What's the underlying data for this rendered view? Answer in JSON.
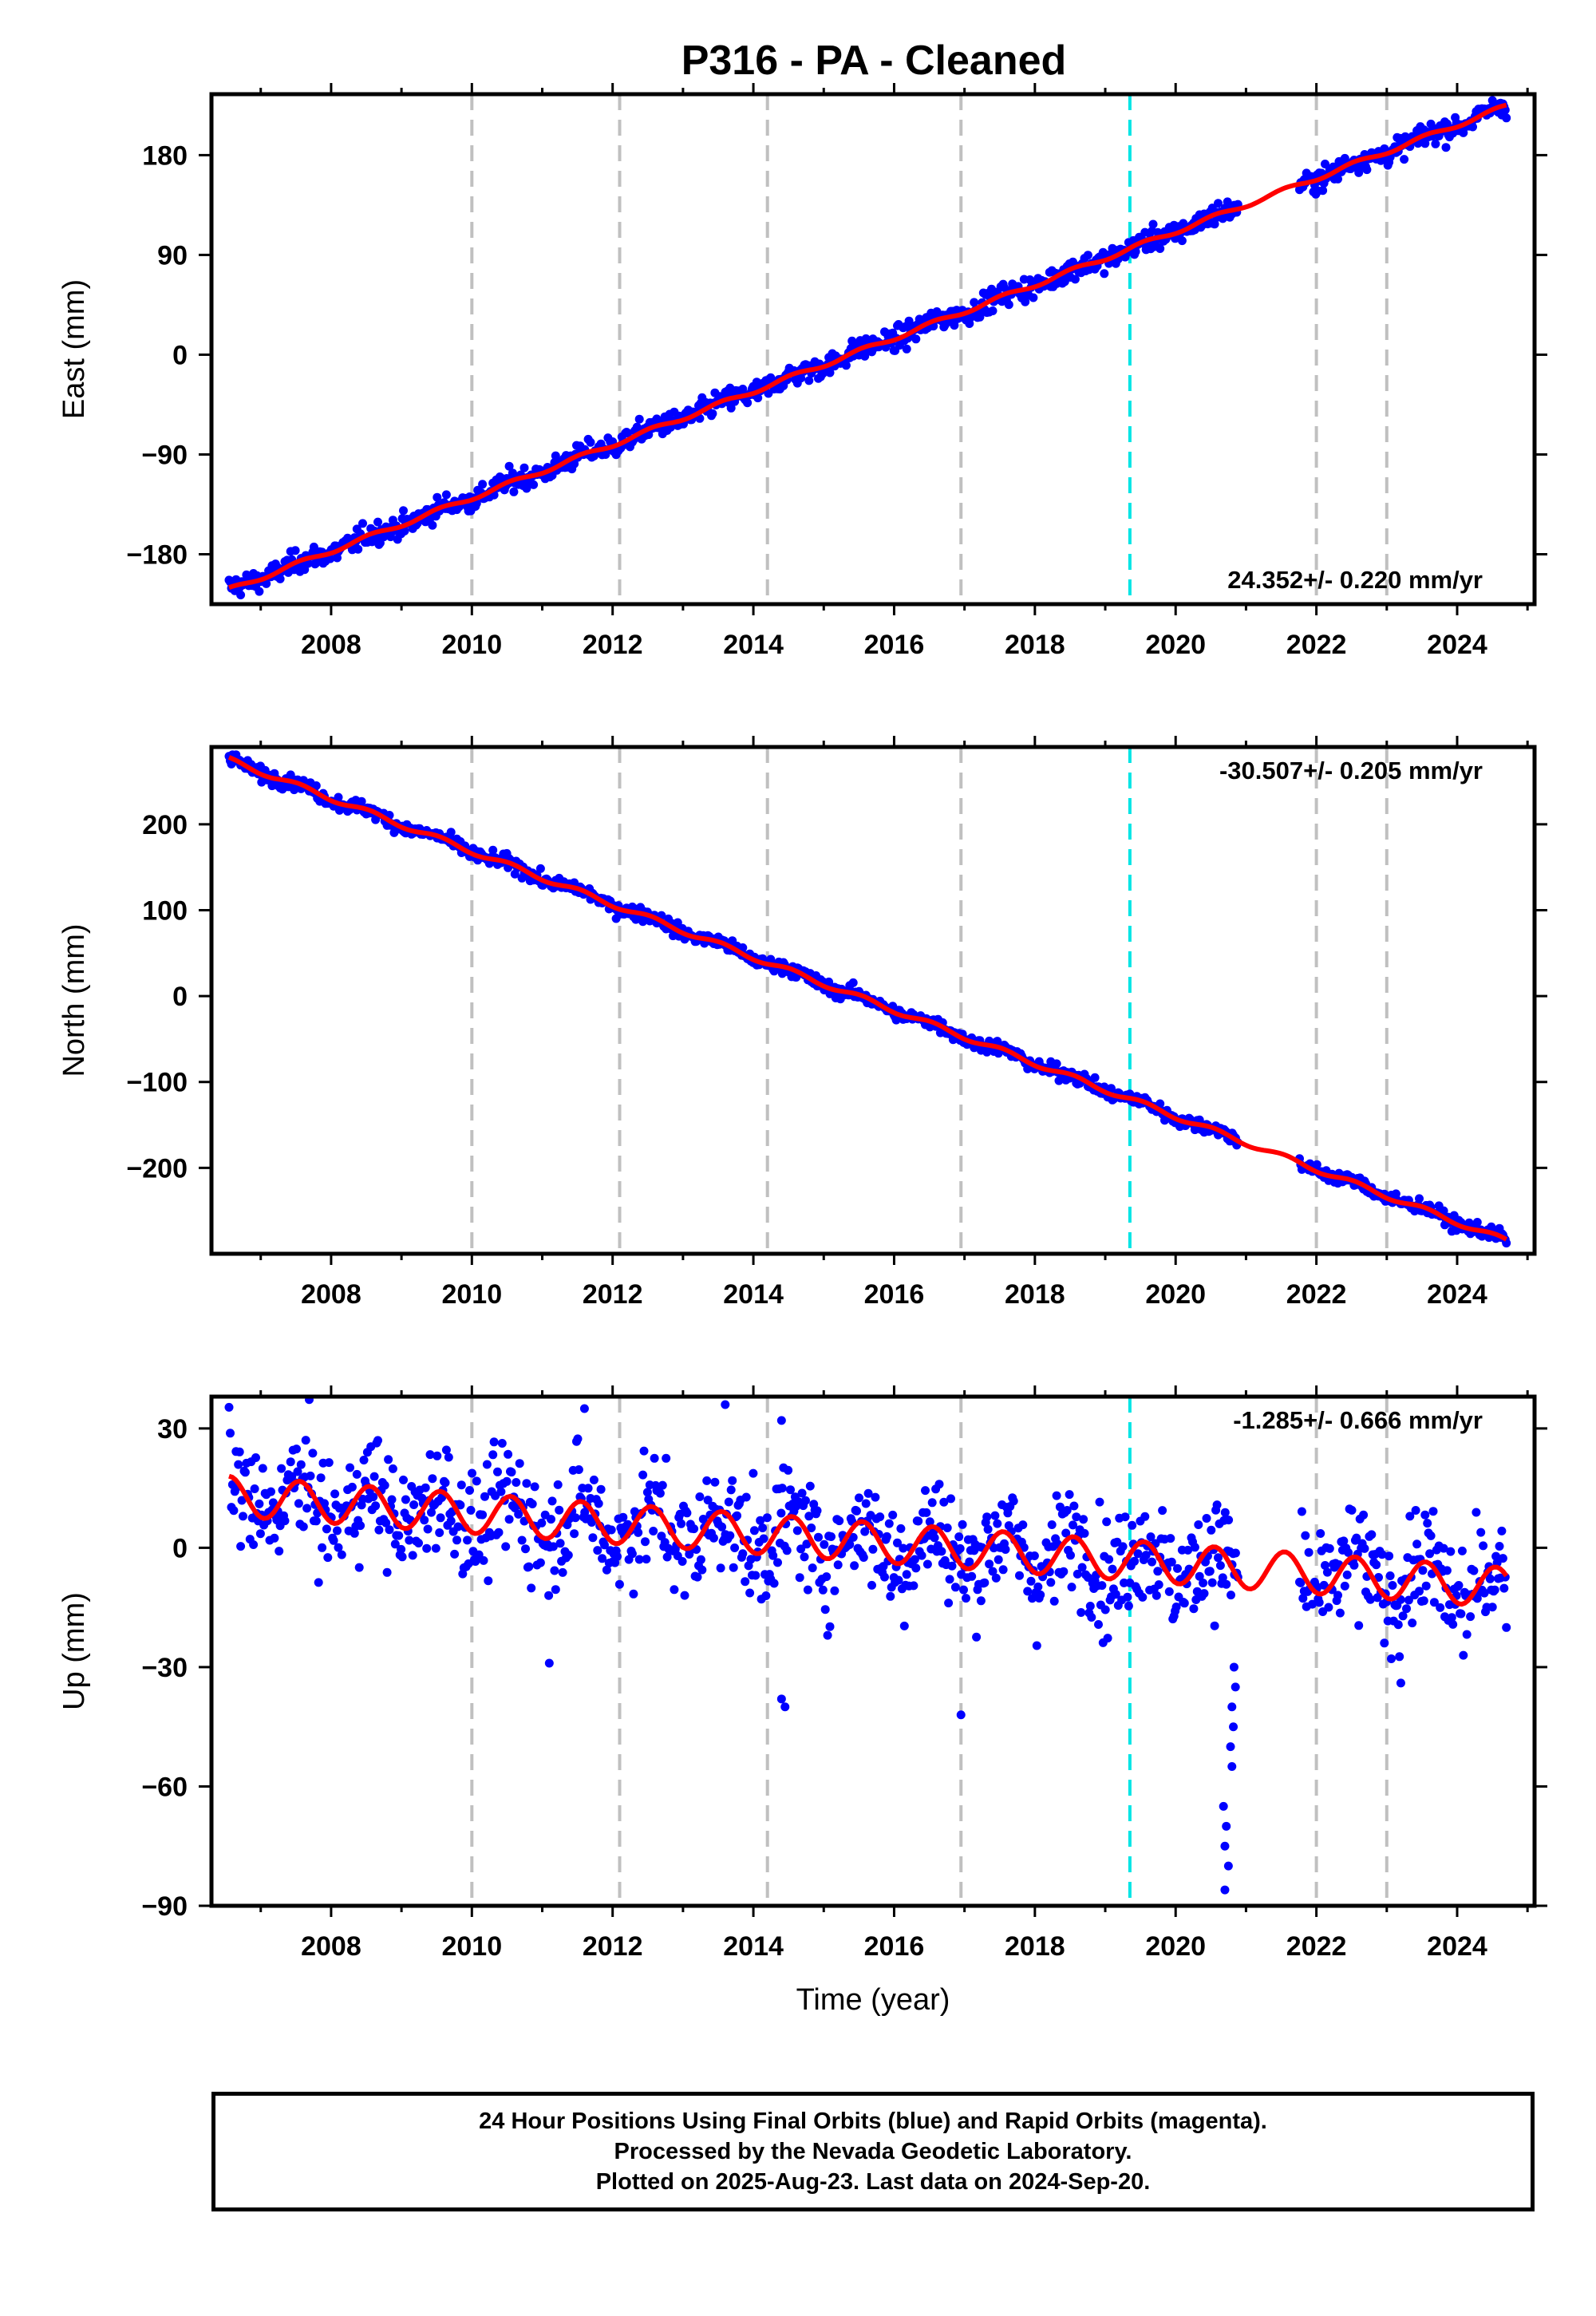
{
  "title": "P316  - PA - Cleaned",
  "footer": {
    "line1": "24 Hour Positions Using Final Orbits (blue) and Rapid Orbits (magenta).",
    "line2": "Processed by the Nevada Geodetic Laboratory.",
    "line3": "Plotted on 2025-Aug-23. Last data on 2024-Sep-20."
  },
  "colors": {
    "data": "#0000ff",
    "model": "#ff0000",
    "grid": "#c0c0c0",
    "equipment_change": "#00e5e5"
  },
  "chart_data": [
    {
      "type": "scatter",
      "ylabel": "East (mm)",
      "xlabel": "",
      "xlim": [
        2006.3,
        2025.1
      ],
      "ylim": [
        -225,
        235
      ],
      "x_ticks": [
        2008,
        2010,
        2012,
        2014,
        2016,
        2018,
        2020,
        2022,
        2024
      ],
      "y_ticks": [
        -180,
        -90,
        0,
        90,
        180
      ],
      "annotation": "24.352+/- 0.220 mm/yr",
      "gray_dashed_lines": [
        2010.0,
        2012.1,
        2014.2,
        2016.95
      ],
      "gray_dashed_lines_late": [
        2022.0,
        2023.0
      ],
      "cyan_dashed_line": 2019.35,
      "start": [
        2006.55,
        -212
      ],
      "end": [
        2024.7,
        224
      ],
      "noise": 5,
      "seasonal": 2
    },
    {
      "type": "scatter",
      "ylabel": "North (mm)",
      "xlabel": "",
      "xlim": [
        2006.3,
        2025.1
      ],
      "ylim": [
        -300,
        290
      ],
      "x_ticks": [
        2008,
        2010,
        2012,
        2014,
        2016,
        2018,
        2020,
        2022,
        2024
      ],
      "y_ticks": [
        -200,
        -100,
        0,
        100,
        200
      ],
      "annotation": "-30.507+/- 0.205 mm/yr",
      "gray_dashed_lines": [
        2010.0,
        2012.1,
        2014.2,
        2016.95
      ],
      "gray_dashed_lines_late": [
        2022.0,
        2023.0
      ],
      "cyan_dashed_line": 2019.35,
      "start": [
        2006.55,
        275
      ],
      "end": [
        2024.7,
        -285
      ],
      "noise": 4,
      "seasonal": 3
    },
    {
      "type": "scatter",
      "ylabel": "Up (mm)",
      "xlabel": "Time (year)",
      "xlim": [
        2006.3,
        2025.1
      ],
      "ylim": [
        -90,
        38
      ],
      "x_ticks": [
        2008,
        2010,
        2012,
        2014,
        2016,
        2018,
        2020,
        2022,
        2024
      ],
      "y_ticks": [
        -90,
        -60,
        -30,
        0,
        30
      ],
      "annotation": "-1.285+/- 0.666 mm/yr",
      "gray_dashed_lines": [
        2010.0,
        2012.1,
        2014.2,
        2016.95
      ],
      "gray_dashed_lines_late": [
        2022.0,
        2023.0
      ],
      "cyan_dashed_line": 2019.35,
      "start": [
        2006.55,
        13
      ],
      "end": [
        2024.7,
        -10
      ],
      "noise": 7,
      "seasonal": 5,
      "outliers": [
        [
          2011.1,
          -29
        ],
        [
          2011.6,
          35
        ],
        [
          2013.6,
          36
        ],
        [
          2014.4,
          32
        ],
        [
          2014.45,
          -40
        ],
        [
          2014.4,
          -38
        ],
        [
          2016.95,
          -42
        ],
        [
          2023.2,
          -34
        ],
        [
          2020.7,
          -86
        ],
        [
          2020.75,
          -80
        ],
        [
          2020.7,
          -75
        ],
        [
          2020.72,
          -70
        ],
        [
          2020.68,
          -65
        ],
        [
          2020.8,
          -55
        ],
        [
          2020.78,
          -50
        ],
        [
          2020.82,
          -45
        ],
        [
          2020.8,
          -40
        ],
        [
          2020.85,
          -35
        ],
        [
          2020.83,
          -30
        ]
      ]
    }
  ]
}
